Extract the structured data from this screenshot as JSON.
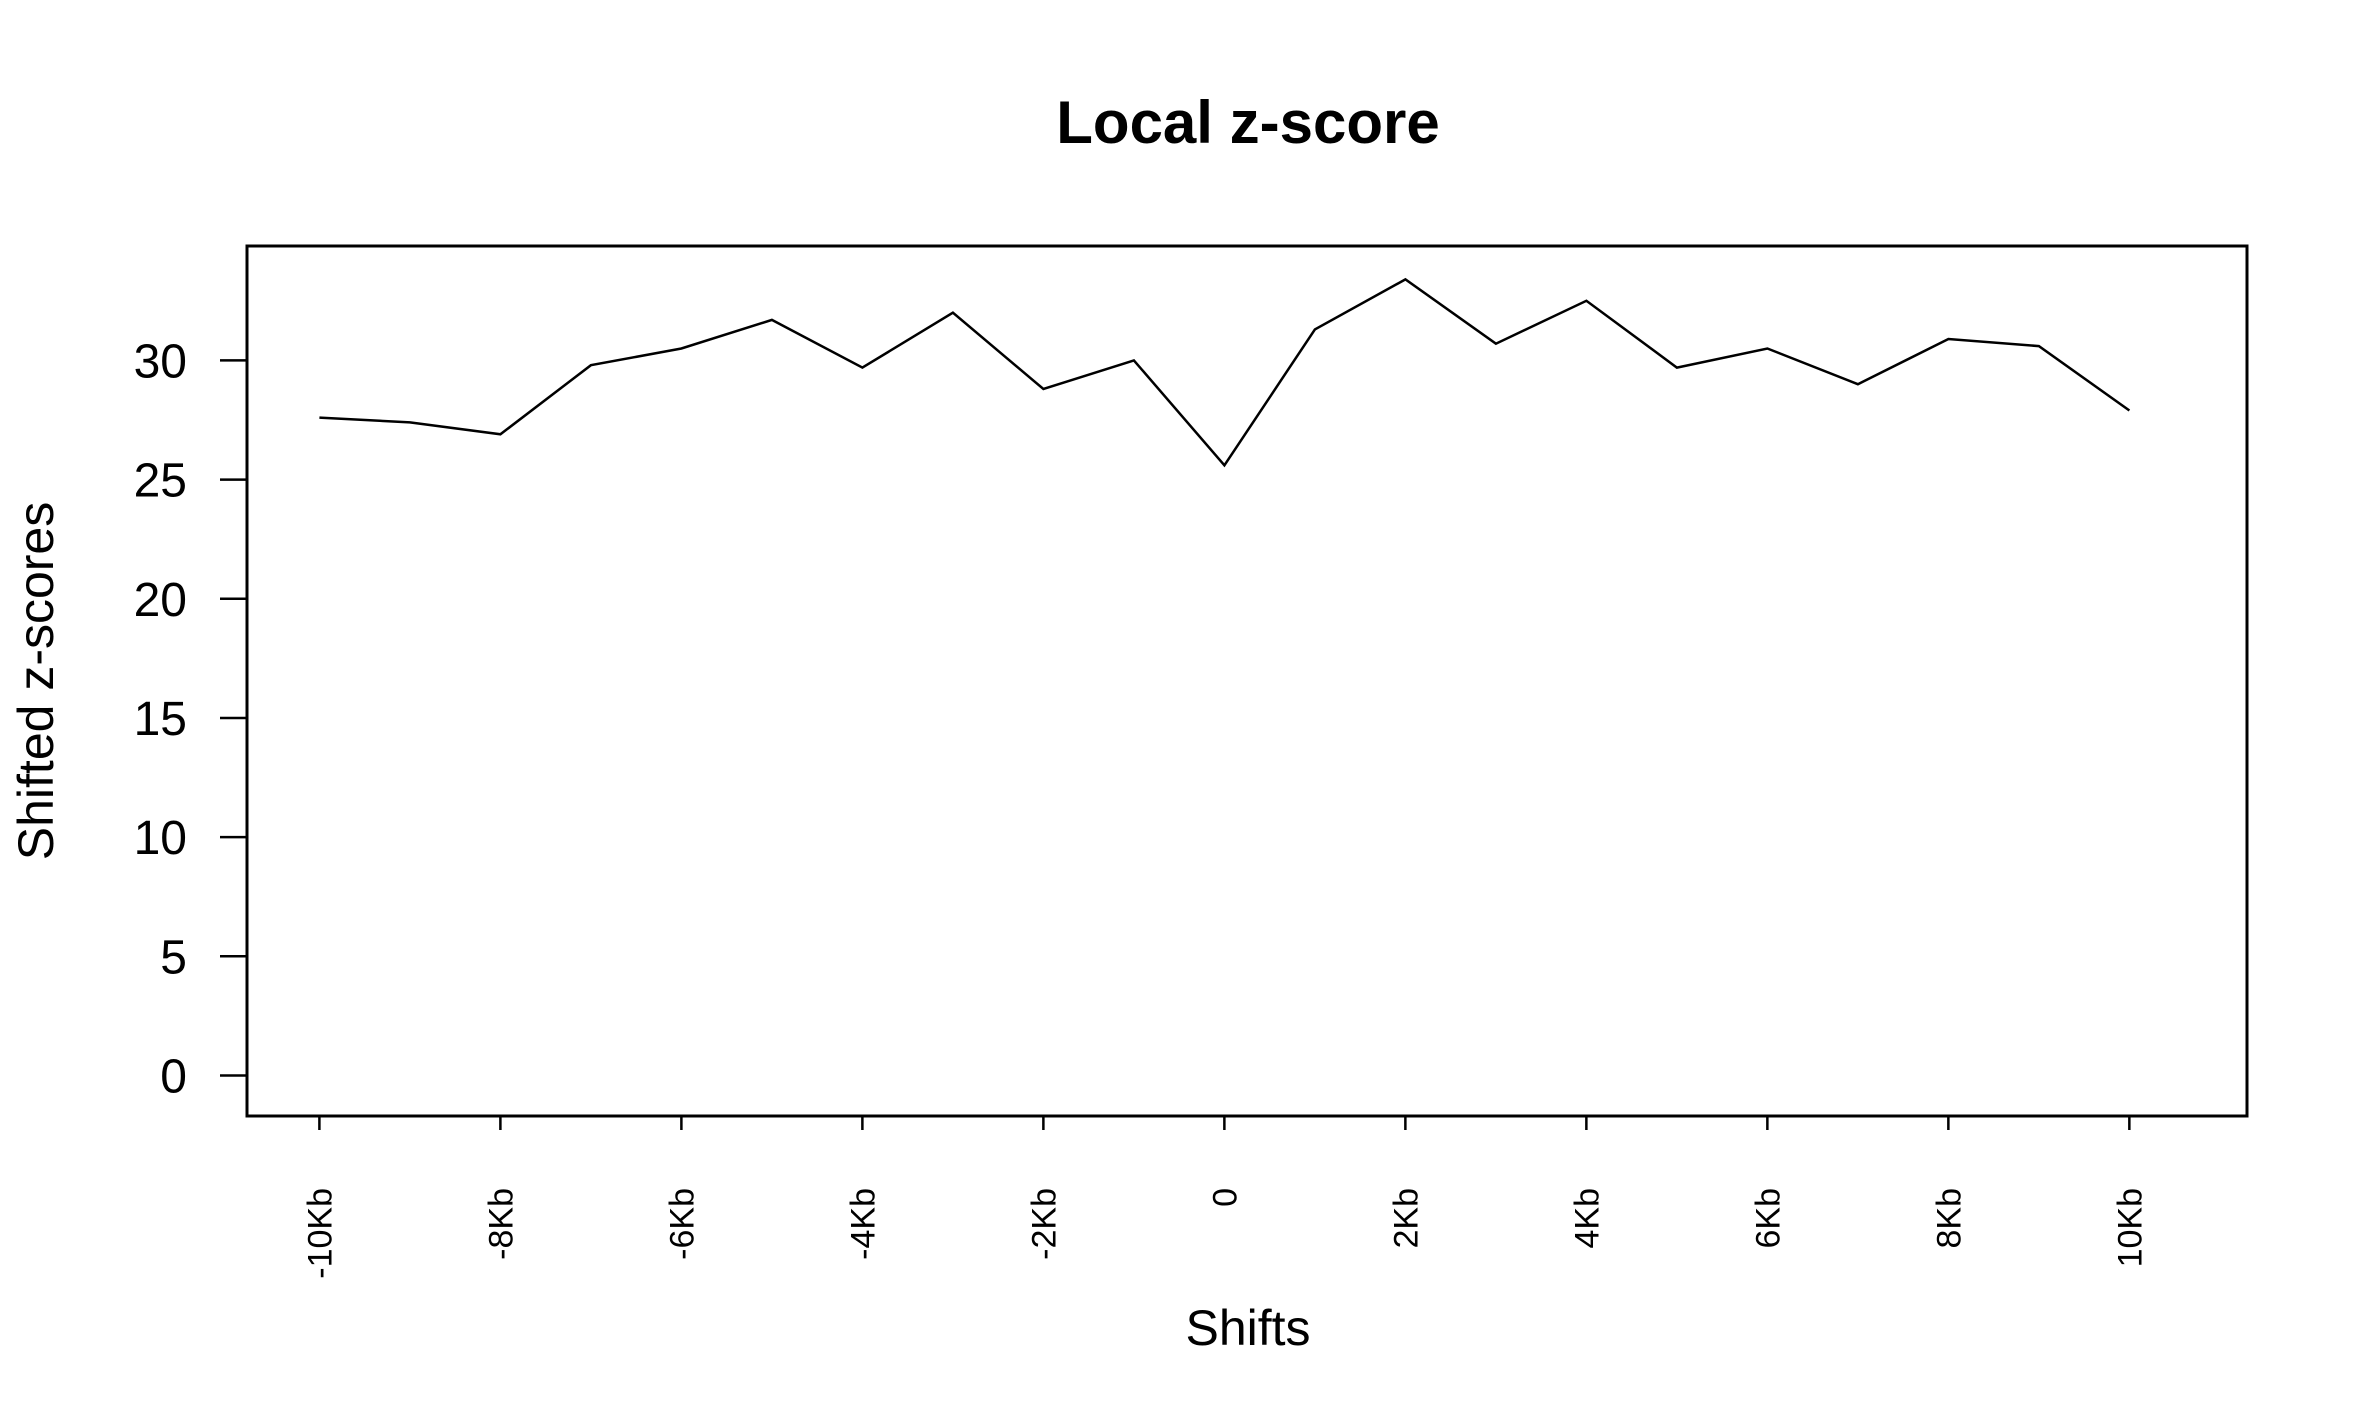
{
  "chart_data": {
    "type": "line",
    "title": "Local z-score",
    "xlabel": "Shifts",
    "ylabel": "Shifted z-scores",
    "x": [
      -10,
      -9,
      -8,
      -7,
      -6,
      -5,
      -4,
      -3,
      -2,
      -1,
      0,
      1,
      2,
      3,
      4,
      5,
      6,
      7,
      8,
      9,
      10
    ],
    "x_unit": "Kb",
    "xticks": [
      {
        "value": -10,
        "label": "-10Kb"
      },
      {
        "value": -8,
        "label": "-8Kb"
      },
      {
        "value": -6,
        "label": "-6Kb"
      },
      {
        "value": -4,
        "label": "-4Kb"
      },
      {
        "value": -2,
        "label": "-2Kb"
      },
      {
        "value": 0,
        "label": "0"
      },
      {
        "value": 2,
        "label": "2Kb"
      },
      {
        "value": 4,
        "label": "4Kb"
      },
      {
        "value": 6,
        "label": "6Kb"
      },
      {
        "value": 8,
        "label": "8Kb"
      },
      {
        "value": 10,
        "label": "10Kb"
      }
    ],
    "yticks": [
      {
        "value": 0,
        "label": "0"
      },
      {
        "value": 5,
        "label": "5"
      },
      {
        "value": 10,
        "label": "10"
      },
      {
        "value": 15,
        "label": "15"
      },
      {
        "value": 20,
        "label": "20"
      },
      {
        "value": 25,
        "label": "25"
      },
      {
        "value": 30,
        "label": "30"
      }
    ],
    "series": [
      {
        "values": [
          27.6,
          27.4,
          26.9,
          29.8,
          30.5,
          31.7,
          29.7,
          32.0,
          28.8,
          30.0,
          25.6,
          31.3,
          33.4,
          30.7,
          32.5,
          29.7,
          30.5,
          29.0,
          30.9,
          30.6,
          27.9
        ]
      }
    ],
    "xlim": [
      -10.8,
      11.3
    ],
    "ylim": [
      -1.7,
      34.8
    ],
    "grid": false,
    "legend": "none",
    "colors": {
      "line": "#000000",
      "axes": "#000000",
      "background": "#ffffff"
    },
    "x_label_rotation": "vertical"
  }
}
